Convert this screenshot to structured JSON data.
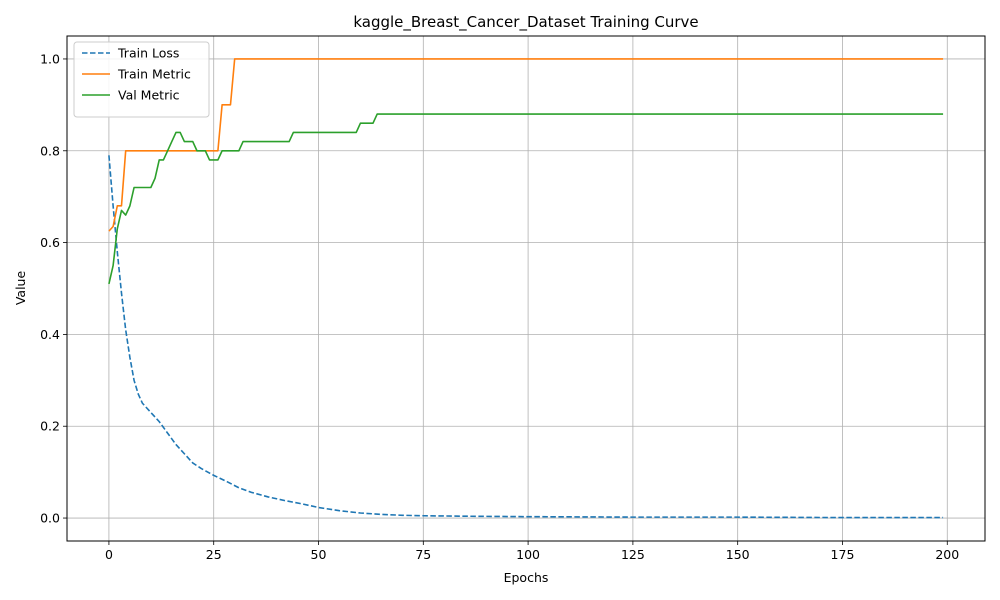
{
  "chart_data": {
    "type": "line",
    "title": "kaggle_Breast_Cancer_Dataset Training Curve",
    "xlabel": "Epochs",
    "ylabel": "Value",
    "xlim": [
      -10,
      209
    ],
    "ylim": [
      -0.05,
      1.05
    ],
    "xticks": [
      0,
      25,
      50,
      75,
      100,
      125,
      150,
      175,
      200
    ],
    "yticks": [
      0.0,
      0.2,
      0.4,
      0.6,
      0.8,
      1.0
    ],
    "xtick_labels": [
      "0",
      "25",
      "50",
      "75",
      "100",
      "125",
      "150",
      "175",
      "200"
    ],
    "ytick_labels": [
      "0.0",
      "0.2",
      "0.4",
      "0.6",
      "0.8",
      "1.0"
    ],
    "grid": true,
    "legend_position": "top-left",
    "series": [
      {
        "name": "Train Loss",
        "color": "#1f77b4",
        "style": "dashed",
        "points": [
          [
            0,
            0.79
          ],
          [
            1,
            0.68
          ],
          [
            2,
            0.58
          ],
          [
            3,
            0.49
          ],
          [
            4,
            0.41
          ],
          [
            5,
            0.35
          ],
          [
            6,
            0.3
          ],
          [
            7,
            0.27
          ],
          [
            8,
            0.25
          ],
          [
            10,
            0.23
          ],
          [
            12,
            0.21
          ],
          [
            14,
            0.185
          ],
          [
            16,
            0.16
          ],
          [
            18,
            0.14
          ],
          [
            20,
            0.12
          ],
          [
            22,
            0.108
          ],
          [
            25,
            0.093
          ],
          [
            28,
            0.08
          ],
          [
            31,
            0.066
          ],
          [
            34,
            0.056
          ],
          [
            38,
            0.046
          ],
          [
            42,
            0.038
          ],
          [
            46,
            0.031
          ],
          [
            50,
            0.023
          ],
          [
            55,
            0.016
          ],
          [
            60,
            0.011
          ],
          [
            65,
            0.008
          ],
          [
            70,
            0.006
          ],
          [
            75,
            0.005
          ],
          [
            85,
            0.004
          ],
          [
            100,
            0.003
          ],
          [
            125,
            0.002
          ],
          [
            150,
            0.002
          ],
          [
            175,
            0.001
          ],
          [
            199,
            0.001
          ]
        ]
      },
      {
        "name": "Train Metric",
        "color": "#ff7f0e",
        "style": "solid",
        "points": [
          [
            0,
            0.625
          ],
          [
            1,
            0.635
          ],
          [
            2,
            0.68
          ],
          [
            3,
            0.68
          ],
          [
            4,
            0.8
          ],
          [
            5,
            0.8
          ],
          [
            25,
            0.8
          ],
          [
            26,
            0.8
          ],
          [
            27,
            0.9
          ],
          [
            28,
            0.9
          ],
          [
            29,
            0.9
          ],
          [
            30,
            1.0
          ],
          [
            199,
            1.0
          ]
        ]
      },
      {
        "name": "Val Metric",
        "color": "#2ca02c",
        "style": "solid",
        "points": [
          [
            0,
            0.51
          ],
          [
            1,
            0.55
          ],
          [
            2,
            0.63
          ],
          [
            3,
            0.67
          ],
          [
            4,
            0.66
          ],
          [
            5,
            0.68
          ],
          [
            6,
            0.72
          ],
          [
            7,
            0.72
          ],
          [
            8,
            0.72
          ],
          [
            10,
            0.72
          ],
          [
            11,
            0.74
          ],
          [
            12,
            0.78
          ],
          [
            13,
            0.78
          ],
          [
            14,
            0.8
          ],
          [
            15,
            0.82
          ],
          [
            16,
            0.84
          ],
          [
            17,
            0.84
          ],
          [
            18,
            0.82
          ],
          [
            19,
            0.82
          ],
          [
            20,
            0.82
          ],
          [
            21,
            0.8
          ],
          [
            22,
            0.8
          ],
          [
            23,
            0.8
          ],
          [
            24,
            0.78
          ],
          [
            25,
            0.78
          ],
          [
            26,
            0.78
          ],
          [
            27,
            0.8
          ],
          [
            28,
            0.8
          ],
          [
            31,
            0.8
          ],
          [
            32,
            0.82
          ],
          [
            33,
            0.82
          ],
          [
            43,
            0.82
          ],
          [
            44,
            0.84
          ],
          [
            45,
            0.84
          ],
          [
            59,
            0.84
          ],
          [
            60,
            0.86
          ],
          [
            63,
            0.86
          ],
          [
            64,
            0.88
          ],
          [
            199,
            0.88
          ]
        ]
      }
    ]
  }
}
